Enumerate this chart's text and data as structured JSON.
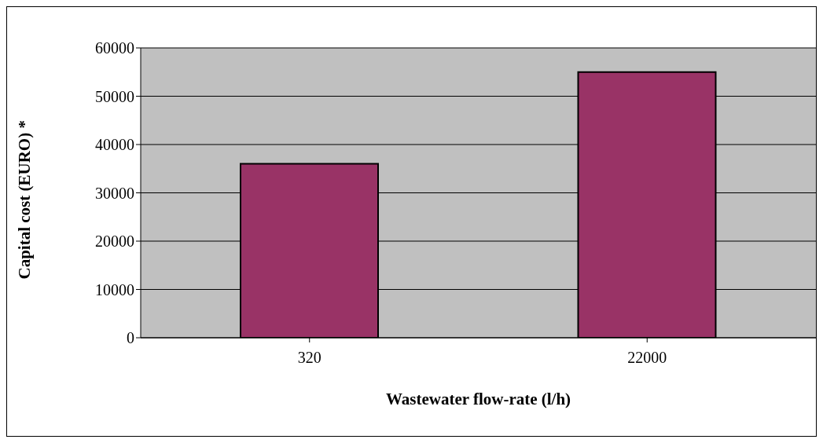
{
  "chart_data": {
    "type": "bar",
    "xlabel": "Wastewater flow-rate (l/h)",
    "ylabel": "Capital cost (EURO) *",
    "categories": [
      "320",
      "22000"
    ],
    "values": [
      36000,
      55000
    ],
    "color": "#993366",
    "ylim": [
      0,
      60000
    ],
    "yticks": [
      0,
      10000,
      20000,
      30000,
      40000,
      50000,
      60000
    ],
    "grid": "y",
    "legend": false
  }
}
